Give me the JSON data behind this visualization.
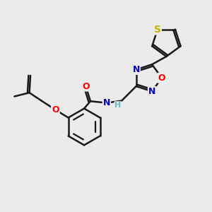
{
  "background_color": "#ebebeb",
  "bond_color": "#1a1a1a",
  "bond_width": 1.8,
  "atom_colors": {
    "S": "#c8b400",
    "O": "#ff0000",
    "N": "#0000cc",
    "H": "#66bbbb",
    "C": "#1a1a1a"
  },
  "font_size": 9,
  "fig_size": [
    3.0,
    3.0
  ],
  "dpi": 100,
  "xlim": [
    0,
    10
  ],
  "ylim": [
    0,
    10
  ]
}
